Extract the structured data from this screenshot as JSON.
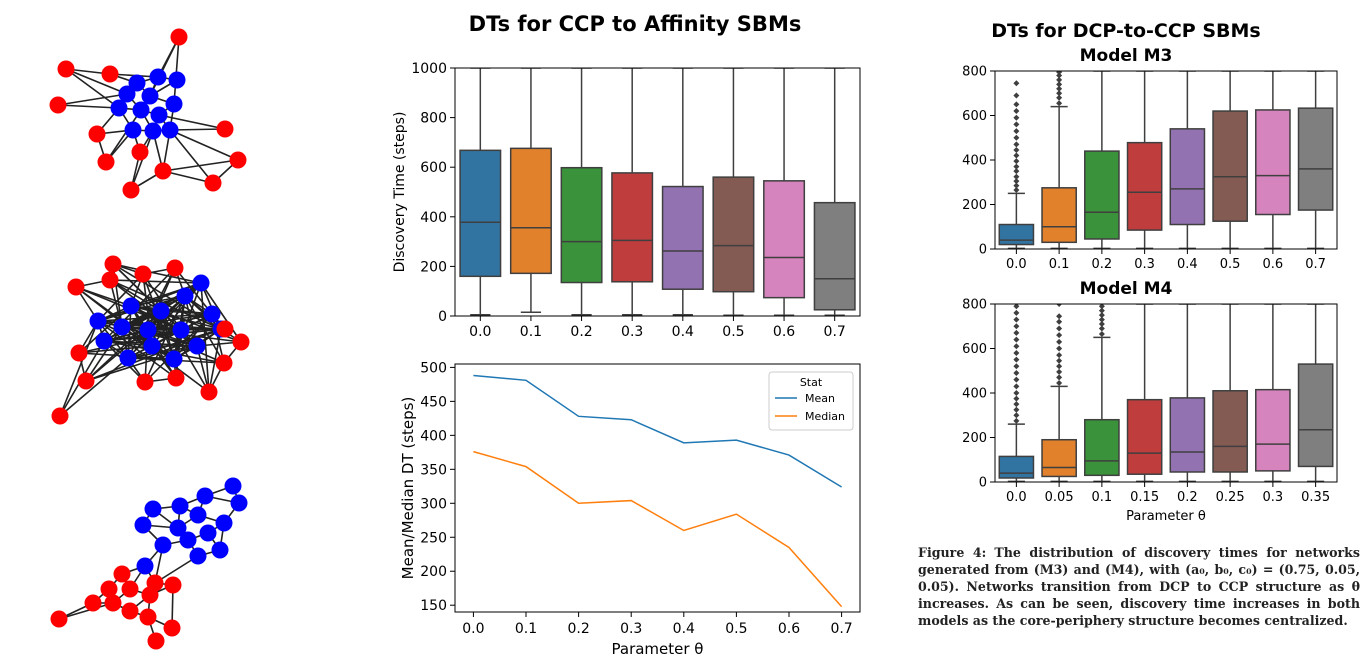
{
  "figure": {
    "caption_label": "Figure 4:",
    "caption_text": "The distribution of discovery times for networks generated from (M3) and (M4), with (a₀, b₀, c₀) = (0.75, 0.05, 0.05). Networks transition from DCP to CCP structure as θ increases. As can be seen, discovery time increases in both models as the core-periphery structure becomes centralized."
  },
  "colors": {
    "core_node": "#0000ff",
    "periphery_node": "#ff0000",
    "edge": "#222222",
    "box_palette": [
      "#3274a1",
      "#e1812c",
      "#3a923a",
      "#c03d3e",
      "#9372b2",
      "#845b53",
      "#d684bd",
      "#7f7f7f"
    ],
    "mean_line": "#1f77b4",
    "median_line": "#ff7f0e"
  },
  "chart_data": [
    {
      "type": "box",
      "title": "DTs for CCP to Affinity SBMs",
      "xlabel": "",
      "ylabel": "Discovery Time (steps)",
      "ylim": [
        0,
        1000
      ],
      "yticks": [
        0,
        200,
        400,
        600,
        800,
        1000
      ],
      "categories": [
        "0.0",
        "0.1",
        "0.2",
        "0.3",
        "0.4",
        "0.5",
        "0.6",
        "0.7"
      ],
      "boxes": [
        {
          "whislo": 5,
          "q1": 160,
          "med": 378,
          "q3": 668,
          "whishi": 1000
        },
        {
          "whislo": 15,
          "q1": 172,
          "med": 356,
          "q3": 676,
          "whishi": 1000
        },
        {
          "whislo": 5,
          "q1": 135,
          "med": 300,
          "q3": 598,
          "whishi": 1000
        },
        {
          "whislo": 5,
          "q1": 138,
          "med": 305,
          "q3": 577,
          "whishi": 1000
        },
        {
          "whislo": 5,
          "q1": 108,
          "med": 262,
          "q3": 522,
          "whishi": 1000
        },
        {
          "whislo": 3,
          "q1": 98,
          "med": 284,
          "q3": 560,
          "whishi": 1000
        },
        {
          "whislo": 3,
          "q1": 74,
          "med": 236,
          "q3": 545,
          "whishi": 1000
        },
        {
          "whislo": 3,
          "q1": 25,
          "med": 150,
          "q3": 457,
          "whishi": 1000
        }
      ]
    },
    {
      "type": "line",
      "title": "",
      "xlabel": "Parameter θ",
      "ylabel": "Mean/Median DT (steps)",
      "x": [
        0.0,
        0.1,
        0.2,
        0.3,
        0.4,
        0.5,
        0.6,
        0.7
      ],
      "xticks": [
        "0.0",
        "0.1",
        "0.2",
        "0.3",
        "0.4",
        "0.5",
        "0.6",
        "0.7"
      ],
      "ylim": [
        140,
        505
      ],
      "yticks": [
        150,
        200,
        250,
        300,
        350,
        400,
        450,
        500
      ],
      "legend_title": "Stat",
      "legend_position": "top-right",
      "series": [
        {
          "name": "Mean",
          "values": [
            488,
            481,
            428,
            423,
            389,
            393,
            371,
            324
          ]
        },
        {
          "name": "Median",
          "values": [
            376,
            354,
            300,
            304,
            260,
            284,
            235,
            148
          ]
        }
      ]
    },
    {
      "type": "box",
      "title": "DTs for DCP-to-CCP SBMs",
      "subtitle": "Model M3",
      "xlabel": "",
      "ylabel": "",
      "ylim": [
        0,
        800
      ],
      "yticks": [
        0,
        200,
        400,
        600,
        800
      ],
      "categories": [
        "0.0",
        "0.1",
        "0.2",
        "0.3",
        "0.4",
        "0.5",
        "0.6",
        "0.7"
      ],
      "boxes": [
        {
          "whislo": 3,
          "q1": 20,
          "med": 40,
          "q3": 110,
          "whishi": 250,
          "fliers": [
            265,
            285,
            305,
            325,
            350,
            370,
            395,
            420,
            445,
            470,
            500,
            530,
            560,
            590,
            620,
            650,
            690,
            745
          ]
        },
        {
          "whislo": 3,
          "q1": 30,
          "med": 100,
          "q3": 275,
          "whishi": 640,
          "fliers": [
            655,
            680,
            700,
            720,
            740,
            760,
            780,
            795
          ]
        },
        {
          "whislo": 3,
          "q1": 45,
          "med": 165,
          "q3": 440,
          "whishi": 800
        },
        {
          "whislo": 3,
          "q1": 85,
          "med": 255,
          "q3": 478,
          "whishi": 800
        },
        {
          "whislo": 3,
          "q1": 110,
          "med": 270,
          "q3": 540,
          "whishi": 800
        },
        {
          "whislo": 3,
          "q1": 125,
          "med": 325,
          "q3": 620,
          "whishi": 800
        },
        {
          "whislo": 3,
          "q1": 155,
          "med": 330,
          "q3": 625,
          "whishi": 800
        },
        {
          "whislo": 3,
          "q1": 175,
          "med": 360,
          "q3": 633,
          "whishi": 800
        }
      ]
    },
    {
      "type": "box",
      "title": "",
      "subtitle": "Model M4",
      "xlabel": "Parameter θ",
      "ylabel": "",
      "ylim": [
        0,
        800
      ],
      "yticks": [
        0,
        200,
        400,
        600,
        800
      ],
      "categories": [
        "0.0",
        "0.05",
        "0.1",
        "0.15",
        "0.2",
        "0.25",
        "0.3",
        "0.35"
      ],
      "boxes": [
        {
          "whislo": 3,
          "q1": 18,
          "med": 40,
          "q3": 115,
          "whishi": 260,
          "fliers": [
            275,
            300,
            325,
            350,
            375,
            400,
            430,
            460,
            490,
            520,
            550,
            580,
            610,
            640,
            670,
            700,
            730,
            760,
            790
          ]
        },
        {
          "whislo": 3,
          "q1": 25,
          "med": 65,
          "q3": 190,
          "whishi": 430,
          "fliers": [
            445,
            470,
            495,
            520,
            545,
            570,
            600,
            630,
            660,
            690,
            720,
            745,
            800
          ]
        },
        {
          "whislo": 3,
          "q1": 30,
          "med": 95,
          "q3": 280,
          "whishi": 650,
          "fliers": [
            665,
            690,
            710,
            730,
            750,
            770,
            790
          ]
        },
        {
          "whislo": 3,
          "q1": 35,
          "med": 130,
          "q3": 370,
          "whishi": 800
        },
        {
          "whislo": 3,
          "q1": 45,
          "med": 135,
          "q3": 378,
          "whishi": 800
        },
        {
          "whislo": 3,
          "q1": 45,
          "med": 160,
          "q3": 410,
          "whishi": 800
        },
        {
          "whislo": 3,
          "q1": 50,
          "med": 170,
          "q3": 415,
          "whishi": 800
        },
        {
          "whislo": 3,
          "q1": 70,
          "med": 235,
          "q3": 530,
          "whishi": 800
        }
      ]
    }
  ]
}
